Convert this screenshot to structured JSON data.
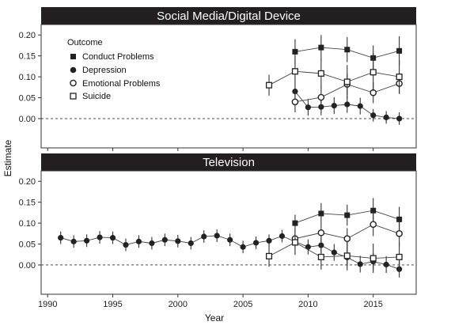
{
  "chart_data": {
    "type": "line",
    "xlabel": "Year",
    "ylabel": "Estimate",
    "xlim": [
      1989.5,
      2018.3
    ],
    "ylim": [
      -0.07,
      0.225
    ],
    "xticks": [
      1990,
      1995,
      2000,
      2005,
      2010,
      2015
    ],
    "yticks": [
      0.0,
      0.05,
      0.1,
      0.15,
      0.2
    ],
    "ytick_labels": [
      "0.00",
      "0.05",
      "0.10",
      "0.15",
      "0.20"
    ],
    "reference_line": 0,
    "legend": {
      "title": "Outcome",
      "placement": "top-left",
      "entries": [
        "Conduct Problems",
        "Depression",
        "Emotional Problems",
        "Suicide"
      ]
    },
    "panels": [
      {
        "title": "Social Media/Digital Device",
        "series": [
          {
            "name": "Conduct Problems",
            "marker": "filled-square",
            "x": [
              2009,
              2011,
              2013,
              2015,
              2017
            ],
            "y": [
              0.16,
              0.17,
              0.165,
              0.145,
              0.162
            ],
            "err": [
              0.03,
              0.03,
              0.03,
              0.03,
              0.035
            ]
          },
          {
            "name": "Depression",
            "marker": "filled-circle",
            "x": [
              2009,
              2010,
              2011,
              2012,
              2013,
              2014,
              2015,
              2016,
              2017
            ],
            "y": [
              0.065,
              0.027,
              0.028,
              0.031,
              0.034,
              0.03,
              0.008,
              0.003,
              0.0
            ],
            "err": [
              0.02,
              0.02,
              0.02,
              0.02,
              0.02,
              0.02,
              0.015,
              0.015,
              0.015
            ]
          },
          {
            "name": "Emotional Problems",
            "marker": "open-circle",
            "x": [
              2009,
              2011,
              2013,
              2015,
              2017
            ],
            "y": [
              0.04,
              0.051,
              0.082,
              0.062,
              0.084
            ],
            "err": [
              0.025,
              0.025,
              0.025,
              0.025,
              0.025
            ]
          },
          {
            "name": "Suicide",
            "marker": "open-square",
            "x": [
              2007,
              2009,
              2011,
              2013,
              2015,
              2017
            ],
            "y": [
              0.08,
              0.113,
              0.108,
              0.088,
              0.111,
              0.1
            ],
            "err": [
              0.025,
              0.03,
              0.035,
              0.04,
              0.045,
              0.04
            ]
          }
        ]
      },
      {
        "title": "Television",
        "series": [
          {
            "name": "Conduct Problems",
            "marker": "filled-square",
            "x": [
              2009,
              2011,
              2013,
              2015,
              2017
            ],
            "y": [
              0.1,
              0.123,
              0.119,
              0.13,
              0.109
            ],
            "err": [
              0.02,
              0.025,
              0.025,
              0.03,
              0.03
            ]
          },
          {
            "name": "Depression",
            "marker": "filled-circle",
            "x": [
              1991,
              1992,
              1993,
              1994,
              1995,
              1996,
              1997,
              1998,
              1999,
              2000,
              2001,
              2002,
              2003,
              2004,
              2005,
              2006,
              2007,
              2008,
              2009,
              2010,
              2011,
              2012,
              2013,
              2014,
              2015,
              2016,
              2017
            ],
            "y": [
              0.065,
              0.056,
              0.058,
              0.066,
              0.065,
              0.048,
              0.056,
              0.052,
              0.06,
              0.057,
              0.052,
              0.068,
              0.07,
              0.06,
              0.043,
              0.053,
              0.058,
              0.069,
              0.056,
              0.043,
              0.047,
              0.03,
              0.018,
              0.002,
              0.008,
              0.001,
              -0.01
            ],
            "err": [
              0.015,
              0.015,
              0.015,
              0.015,
              0.015,
              0.015,
              0.015,
              0.015,
              0.015,
              0.015,
              0.015,
              0.015,
              0.015,
              0.015,
              0.015,
              0.015,
              0.015,
              0.015,
              0.018,
              0.018,
              0.018,
              0.02,
              0.02,
              0.02,
              0.02,
              0.02,
              0.02
            ]
          },
          {
            "name": "Emotional Problems",
            "marker": "open-circle",
            "x": [
              2009,
              2011,
              2013,
              2015,
              2017
            ],
            "y": [
              0.063,
              0.077,
              0.063,
              0.097,
              0.075
            ],
            "err": [
              0.02,
              0.022,
              0.025,
              0.028,
              0.03
            ]
          },
          {
            "name": "Suicide",
            "marker": "open-square",
            "x": [
              2007,
              2009,
              2011,
              2013,
              2015,
              2017
            ],
            "y": [
              0.021,
              0.054,
              0.019,
              0.022,
              0.016,
              0.019
            ],
            "err": [
              0.025,
              0.03,
              0.03,
              0.035,
              0.035,
              0.035
            ]
          }
        ]
      }
    ]
  }
}
